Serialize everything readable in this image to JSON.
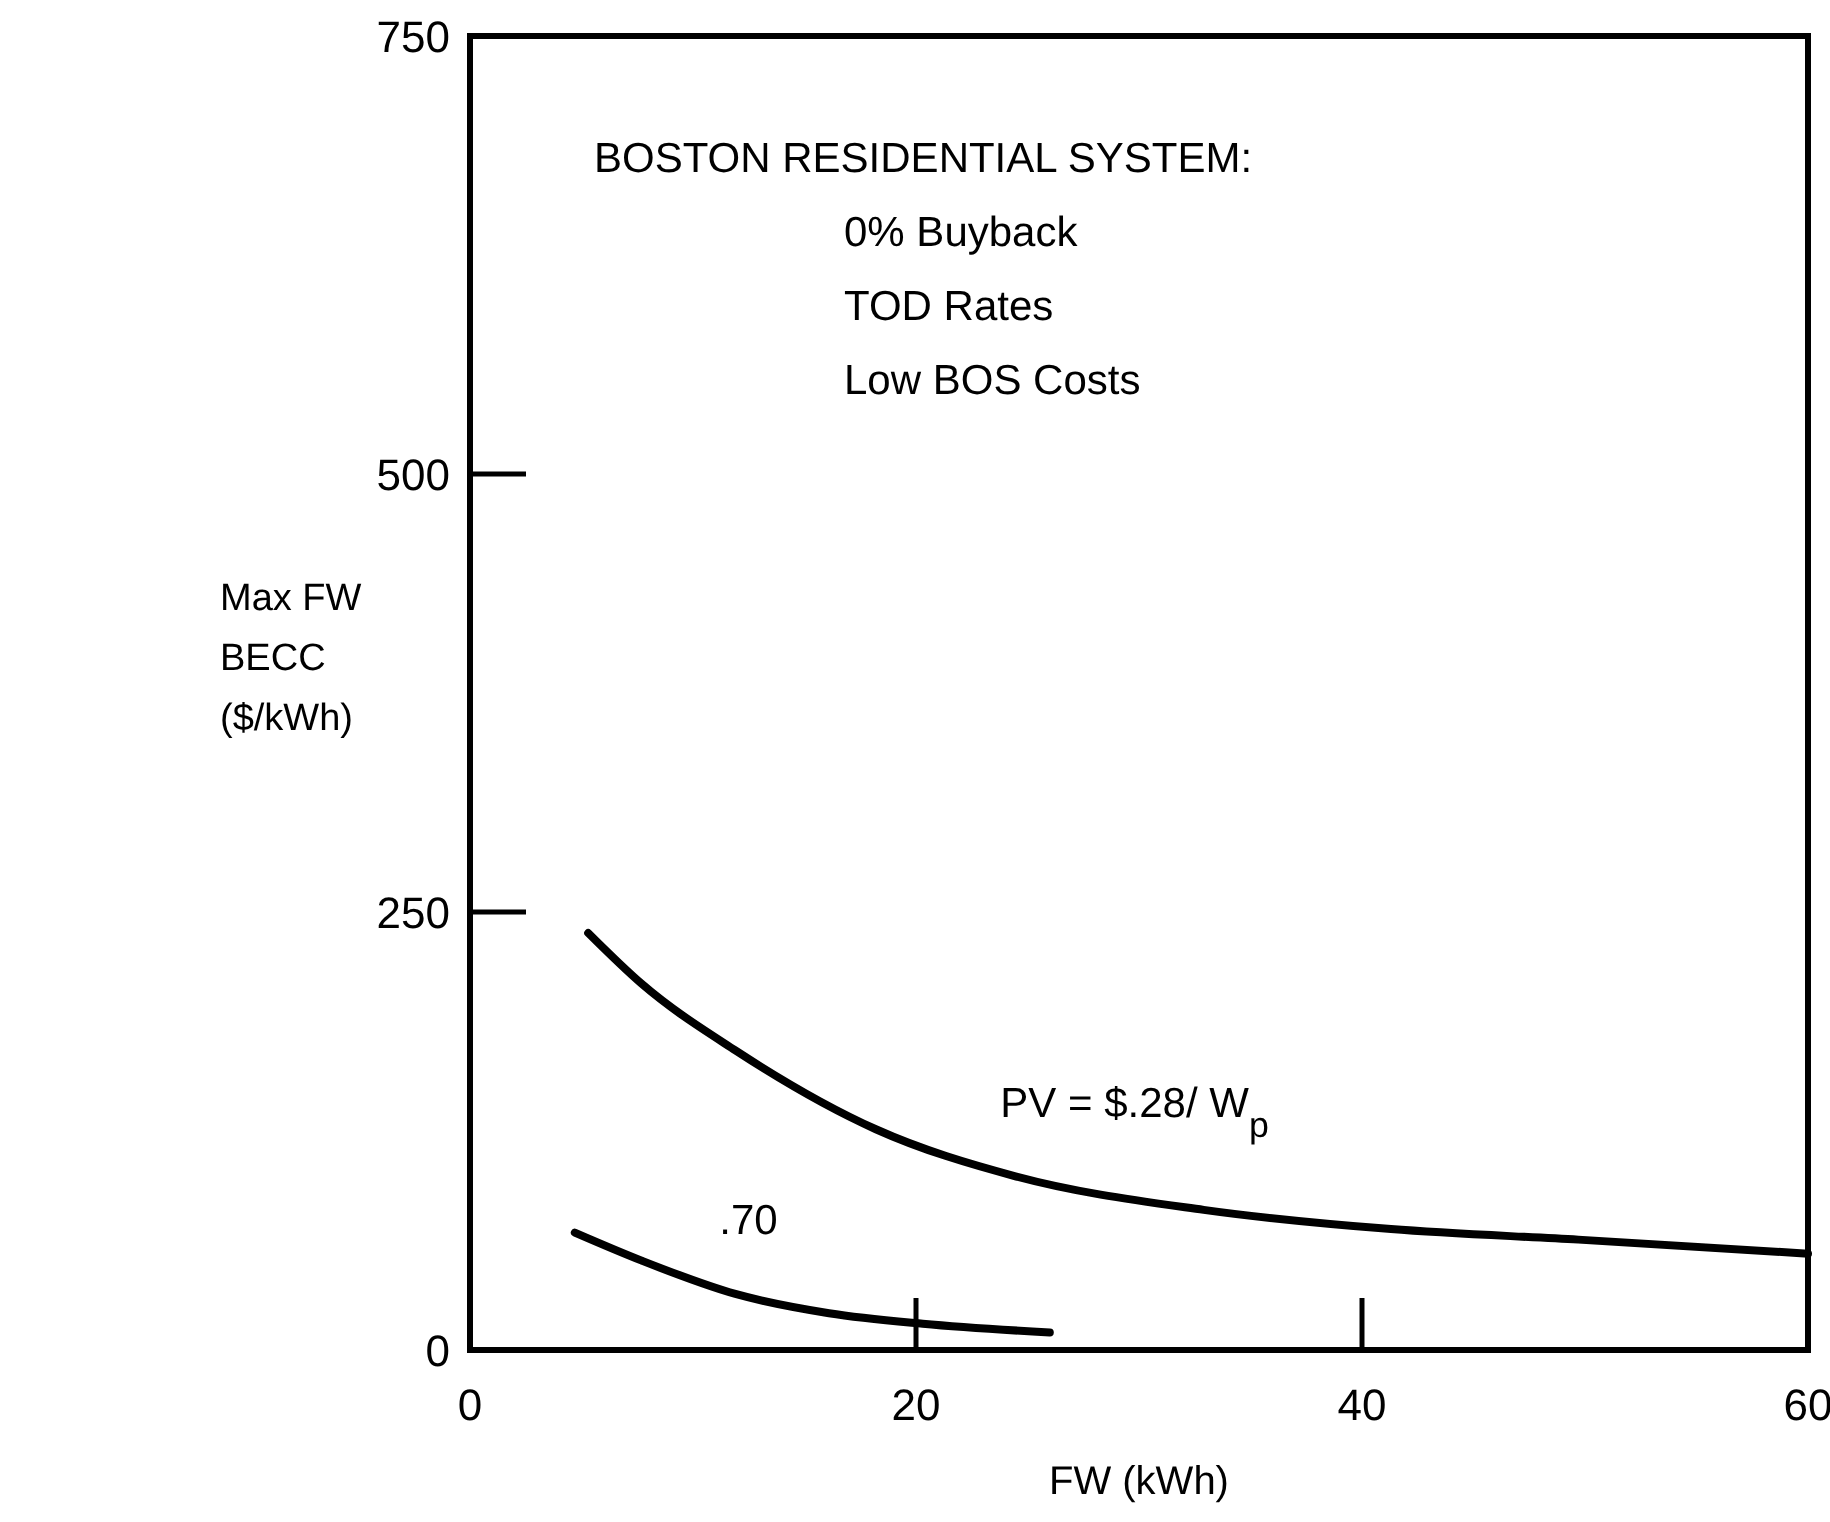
{
  "chart_data": {
    "type": "line",
    "xlabel": "FW (kWh)",
    "ylabel": "Max FW\nBECC\n($/kWh)",
    "xlim": [
      0,
      60
    ],
    "ylim": [
      0,
      750
    ],
    "xticks": [
      0,
      20,
      40,
      60
    ],
    "yticks": [
      0,
      250,
      500,
      750
    ],
    "grid": false,
    "marker": "none",
    "line_style": "solid",
    "series": [
      {
        "name": "PV = $.28/ W$_{p}$",
        "color": "#000000",
        "x": [
          5.3,
          7.7,
          11.9,
          18.2,
          24.5,
          32.9,
          41.3,
          49.7,
          60
        ],
        "values": [
          238,
          209,
          171,
          126,
          99,
          80,
          69,
          63,
          55
        ]
      },
      {
        "name": ".70",
        "color": "#000000",
        "x": [
          4.7,
          7.7,
          11.9,
          16.1,
          20.3,
          26
        ],
        "values": [
          67,
          51,
          32,
          21,
          15,
          10
        ]
      }
    ],
    "annotations": [
      "BOSTON RESIDENTIAL SYSTEM:",
      "0% Buyback",
      "TOD Rates",
      "Low BOS Costs"
    ]
  }
}
